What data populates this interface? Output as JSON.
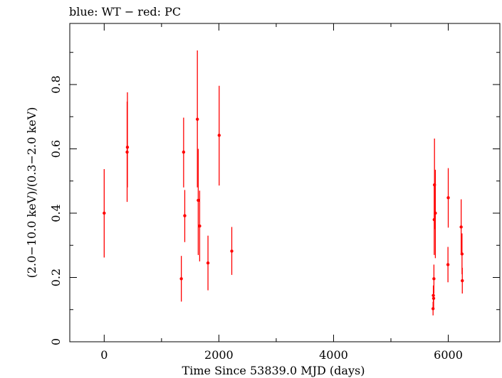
{
  "chart_data": {
    "type": "scatter",
    "title": "blue: WT − red: PC",
    "xlabel": "Time Since 53839.0 MJD (days)",
    "ylabel": "(2.0−10.0 keV)/(0.3−2.0 keV)",
    "xlim": [
      -600,
      6900
    ],
    "ylim": [
      0,
      0.99
    ],
    "xticks": [
      0,
      2000,
      4000,
      6000
    ],
    "xtick_labels": [
      "0",
      "2000",
      "4000",
      "6000"
    ],
    "yticks": [
      0,
      0.2,
      0.4,
      0.6,
      0.8
    ],
    "ytick_labels": [
      "0",
      "0.2",
      "0.4",
      "0.6",
      "0.8"
    ],
    "grid": false,
    "series": [
      {
        "name": "PC",
        "color": "#ff0000",
        "points": [
          {
            "x": 0,
            "y": 0.4,
            "ylo": 0.262,
            "yhi": 0.537
          },
          {
            "x": 400,
            "y": 0.59,
            "ylo": 0.435,
            "yhi": 0.747
          },
          {
            "x": 405,
            "y": 0.605,
            "ylo": 0.48,
            "yhi": 0.776
          },
          {
            "x": 1345,
            "y": 0.196,
            "ylo": 0.125,
            "yhi": 0.267
          },
          {
            "x": 1385,
            "y": 0.59,
            "ylo": 0.48,
            "yhi": 0.697
          },
          {
            "x": 1405,
            "y": 0.392,
            "ylo": 0.31,
            "yhi": 0.472
          },
          {
            "x": 1625,
            "y": 0.692,
            "ylo": 0.48,
            "yhi": 0.906
          },
          {
            "x": 1640,
            "y": 0.44,
            "ylo": 0.27,
            "yhi": 0.6
          },
          {
            "x": 1665,
            "y": 0.36,
            "ylo": 0.25,
            "yhi": 0.47
          },
          {
            "x": 1810,
            "y": 0.245,
            "ylo": 0.16,
            "yhi": 0.33
          },
          {
            "x": 2005,
            "y": 0.642,
            "ylo": 0.486,
            "yhi": 0.796
          },
          {
            "x": 2225,
            "y": 0.282,
            "ylo": 0.208,
            "yhi": 0.357
          },
          {
            "x": 5735,
            "y": 0.103,
            "ylo": 0.082,
            "yhi": 0.124
          },
          {
            "x": 5740,
            "y": 0.144,
            "ylo": 0.11,
            "yhi": 0.175
          },
          {
            "x": 5745,
            "y": 0.135,
            "ylo": 0.1,
            "yhi": 0.17
          },
          {
            "x": 5750,
            "y": 0.196,
            "ylo": 0.15,
            "yhi": 0.24
          },
          {
            "x": 5755,
            "y": 0.38,
            "ylo": 0.27,
            "yhi": 0.49
          },
          {
            "x": 5760,
            "y": 0.488,
            "ylo": 0.35,
            "yhi": 0.632
          },
          {
            "x": 5775,
            "y": 0.4,
            "ylo": 0.26,
            "yhi": 0.535
          },
          {
            "x": 5995,
            "y": 0.24,
            "ylo": 0.185,
            "yhi": 0.295
          },
          {
            "x": 6000,
            "y": 0.448,
            "ylo": 0.355,
            "yhi": 0.54
          },
          {
            "x": 6225,
            "y": 0.357,
            "ylo": 0.27,
            "yhi": 0.443
          },
          {
            "x": 6240,
            "y": 0.273,
            "ylo": 0.21,
            "yhi": 0.337
          },
          {
            "x": 6245,
            "y": 0.19,
            "ylo": 0.15,
            "yhi": 0.23
          }
        ]
      }
    ]
  }
}
